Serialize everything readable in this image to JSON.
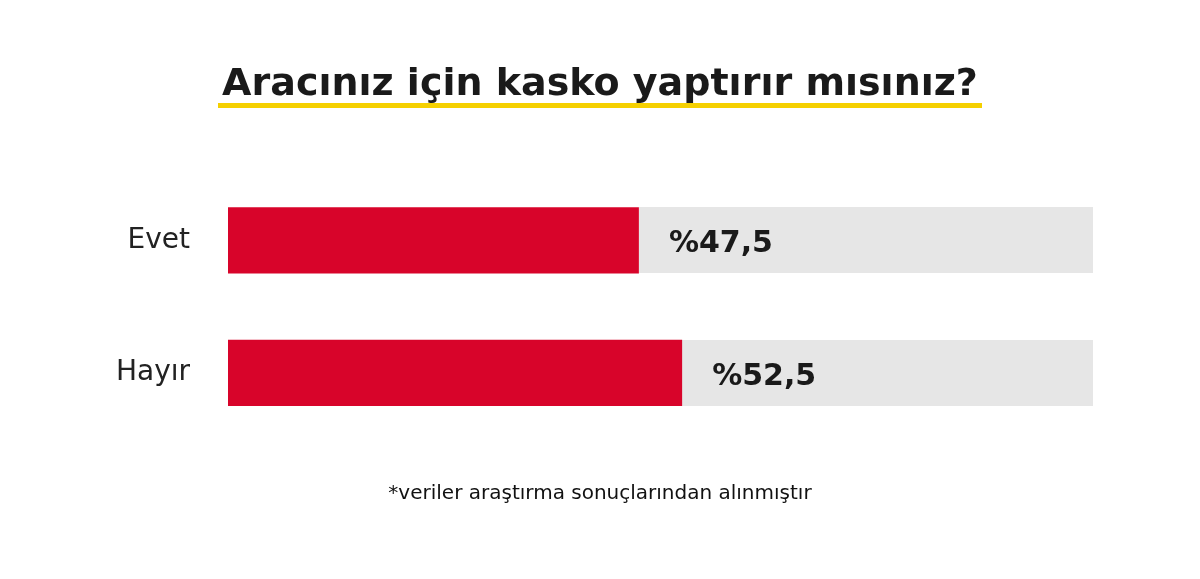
{
  "chart_data": {
    "type": "bar",
    "orientation": "horizontal",
    "title": "Aracınız için kasko yaptırır mısınız?",
    "categories": [
      "Evet",
      "Hayır"
    ],
    "values": [
      47.5,
      52.5
    ],
    "color": "#d8042a",
    "value_labels": [
      "%47,5",
      "%52,5"
    ],
    "xlim": [
      0,
      100
    ],
    "tick_labels": "y",
    "annotations": [
      "*veriler araştırma sonuçlarından alınmıştır"
    ]
  }
}
